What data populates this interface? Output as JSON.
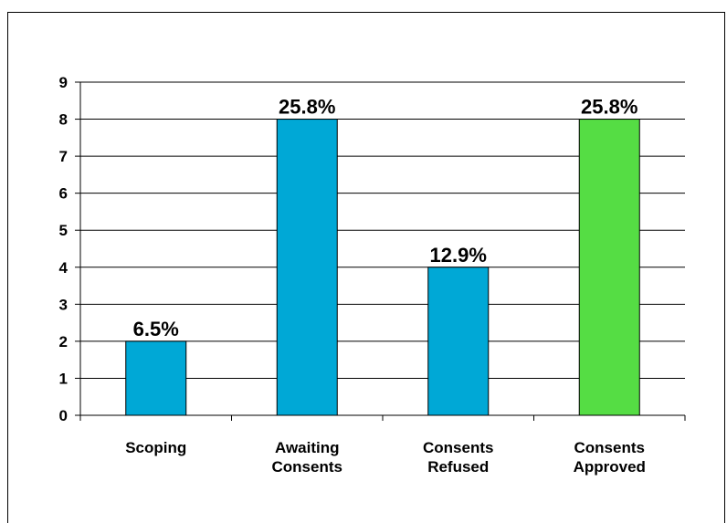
{
  "chart_data": {
    "type": "bar",
    "categories": [
      [
        "Scoping"
      ],
      [
        "Awaiting",
        "Consents"
      ],
      [
        "Consents",
        "Refused"
      ],
      [
        "Consents",
        "Approved"
      ]
    ],
    "values": [
      2,
      8,
      4,
      8
    ],
    "data_labels": [
      "6.5%",
      "25.8%",
      "12.9%",
      "25.8%"
    ],
    "bar_colors": [
      "#00a8d6",
      "#00a8d6",
      "#00a8d6",
      "#55dd44"
    ],
    "ylim": [
      0,
      9
    ],
    "yticks": [
      "0",
      "1",
      "2",
      "3",
      "4",
      "5",
      "6",
      "7",
      "8",
      "9"
    ],
    "grid": true
  }
}
